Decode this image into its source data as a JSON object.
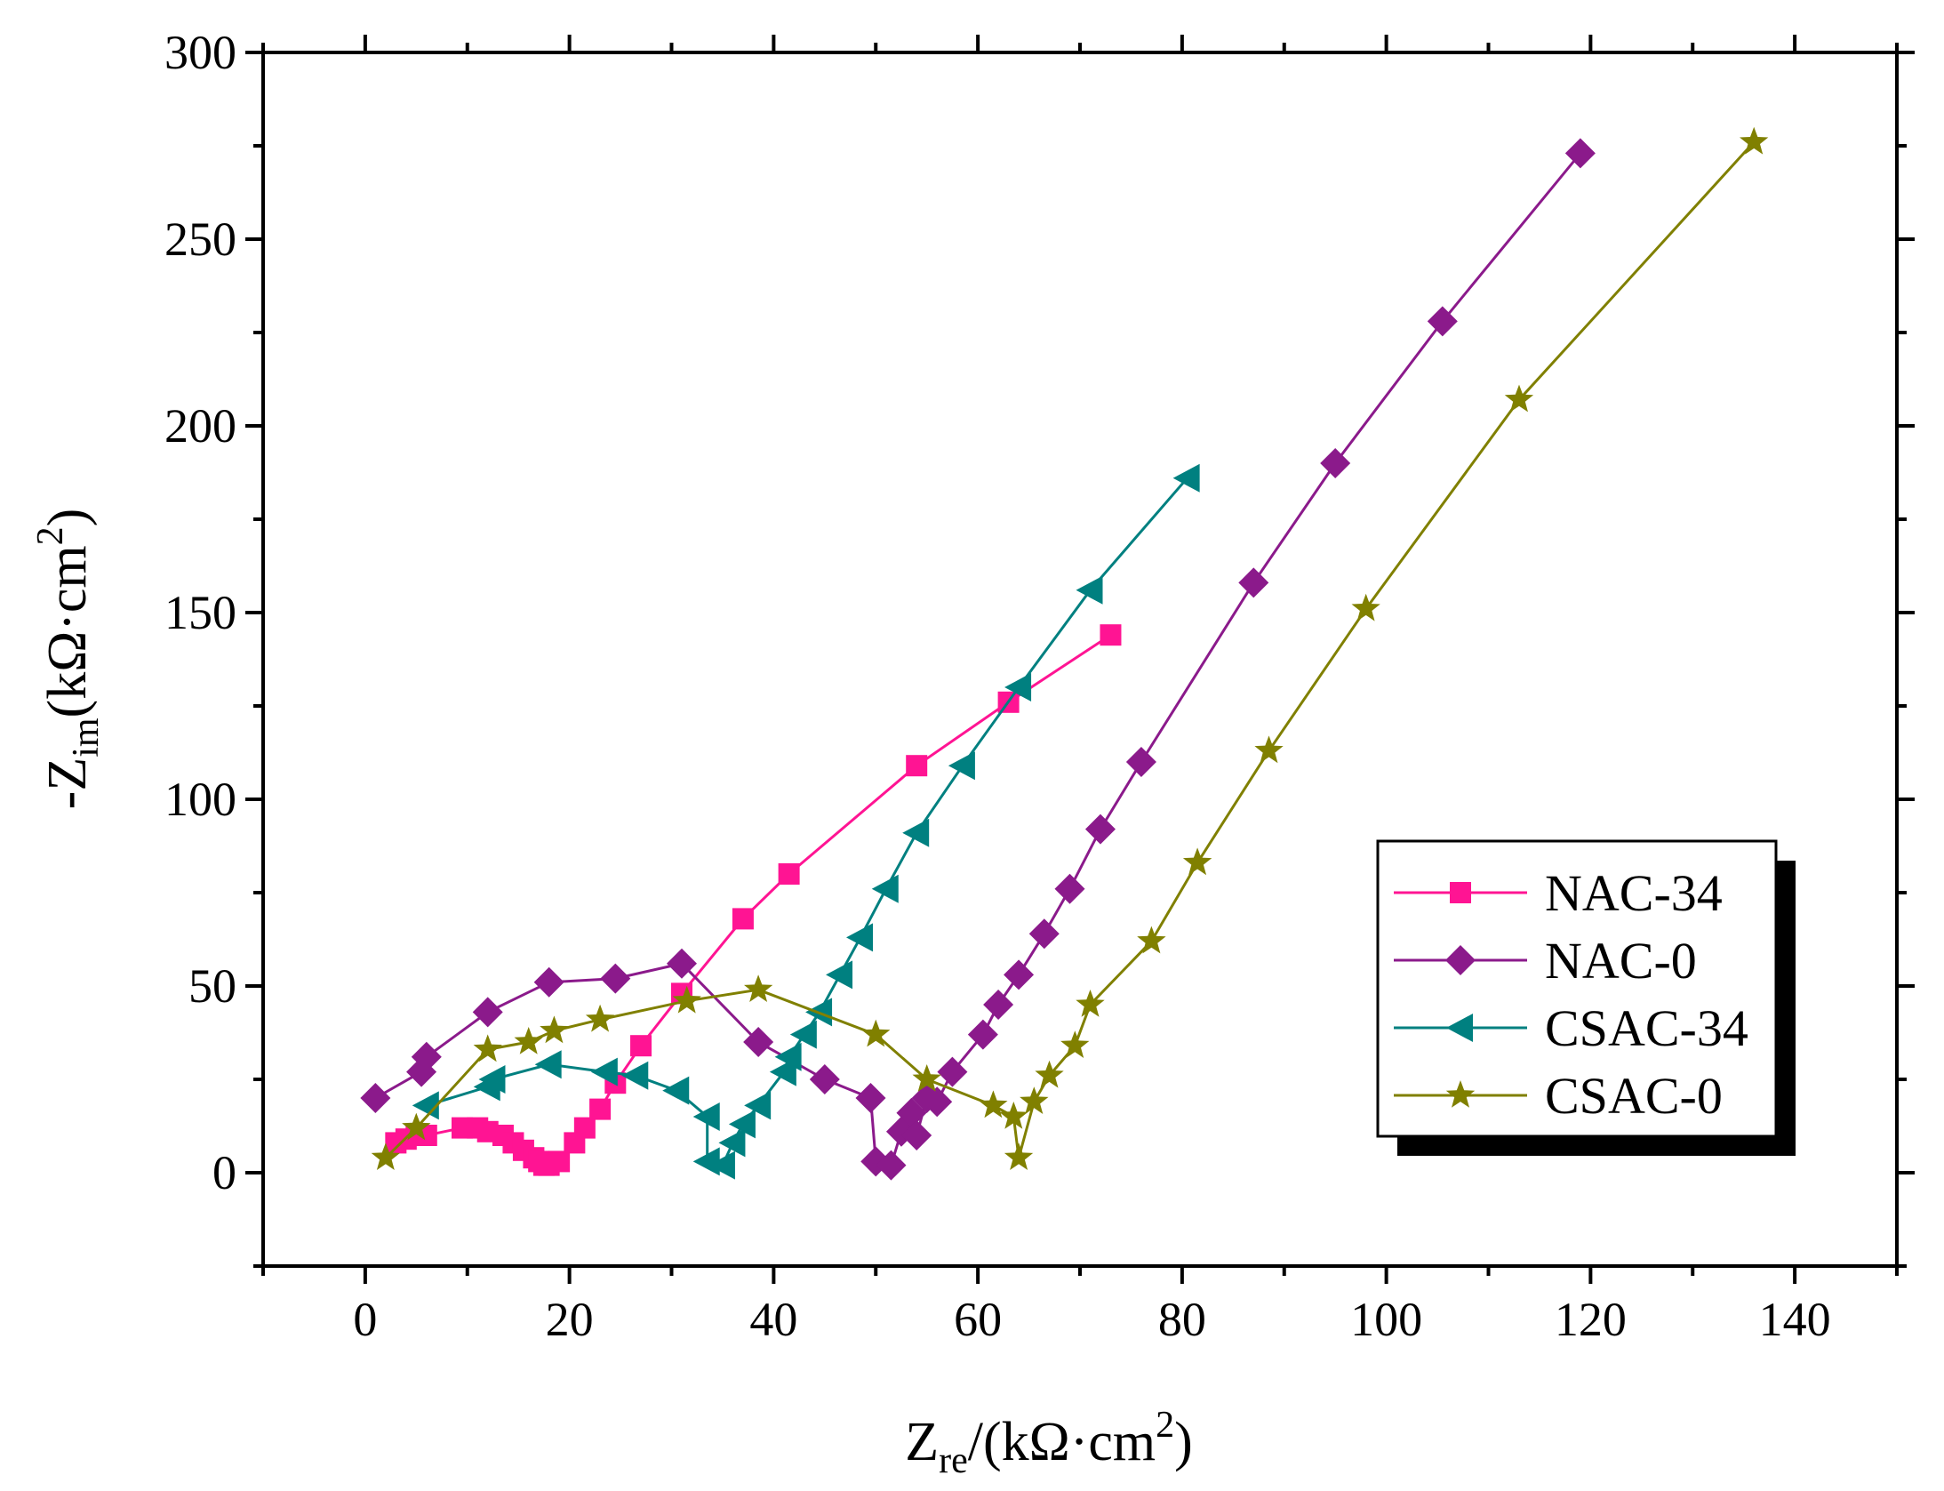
{
  "chart_data": {
    "type": "scatter",
    "xlabel": {
      "main": "Z",
      "sub": "re",
      "rest": "/(kΩ·cm",
      "sup": "2",
      "close": ")"
    },
    "ylabel": {
      "main": "-Z",
      "sub": "im",
      "rest": "(kΩ·cm",
      "sup": "2",
      "close": ")"
    },
    "xlim": [
      -10,
      150
    ],
    "ylim": [
      -25,
      300
    ],
    "x_ticks": [
      0,
      20,
      40,
      60,
      80,
      100,
      120,
      140
    ],
    "y_ticks": [
      0,
      50,
      100,
      150,
      200,
      250,
      300
    ],
    "legend_position": "lower-right",
    "grid": false,
    "series": [
      {
        "name": "NAC-34",
        "color": "#ff1493",
        "marker": "square",
        "points": [
          [
            3,
            8
          ],
          [
            4,
            9
          ],
          [
            5,
            10
          ],
          [
            6,
            10
          ],
          [
            9.5,
            12
          ],
          [
            11,
            12
          ],
          [
            12,
            11
          ],
          [
            13.5,
            10
          ],
          [
            14.5,
            8
          ],
          [
            15.5,
            6
          ],
          [
            16.5,
            4
          ],
          [
            17,
            3
          ],
          [
            17.5,
            2
          ],
          [
            18,
            2
          ],
          [
            19,
            3
          ],
          [
            20.5,
            8
          ],
          [
            21.5,
            12
          ],
          [
            23,
            17
          ],
          [
            24.5,
            24
          ],
          [
            27,
            34
          ],
          [
            31,
            48
          ],
          [
            37,
            68
          ],
          [
            41.5,
            80
          ],
          [
            54,
            109
          ],
          [
            63,
            126
          ],
          [
            73,
            144
          ]
        ]
      },
      {
        "name": "NAC-0",
        "color": "#8b1a8b",
        "marker": "diamond",
        "points": [
          [
            1,
            20
          ],
          [
            5.5,
            27
          ],
          [
            6,
            31
          ],
          [
            12,
            43
          ],
          [
            18,
            51
          ],
          [
            24.5,
            52
          ],
          [
            31,
            56
          ],
          [
            38.5,
            35
          ],
          [
            45,
            25
          ],
          [
            49.5,
            20
          ],
          [
            50,
            3
          ],
          [
            51.5,
            2
          ],
          [
            52.5,
            11
          ],
          [
            53.5,
            16
          ],
          [
            54,
            10
          ],
          [
            55,
            20
          ],
          [
            56,
            19
          ],
          [
            57.5,
            27
          ],
          [
            60.5,
            37
          ],
          [
            62,
            45
          ],
          [
            64,
            53
          ],
          [
            66.5,
            64
          ],
          [
            69,
            76
          ],
          [
            72,
            92
          ],
          [
            76,
            110
          ],
          [
            87,
            158
          ],
          [
            95,
            190
          ],
          [
            105.5,
            228
          ],
          [
            119,
            273
          ]
        ]
      },
      {
        "name": "CSAC-34",
        "color": "#008080",
        "marker": "triangle-left",
        "points": [
          [
            6,
            18
          ],
          [
            12,
            23
          ],
          [
            12.5,
            25
          ],
          [
            18,
            29
          ],
          [
            23.5,
            27
          ],
          [
            26.5,
            26
          ],
          [
            30.5,
            22
          ],
          [
            33.5,
            15
          ],
          [
            33.5,
            3
          ],
          [
            35,
            2
          ],
          [
            36,
            8
          ],
          [
            37,
            13
          ],
          [
            38.5,
            18
          ],
          [
            41,
            27
          ],
          [
            41.5,
            31
          ],
          [
            43,
            37
          ],
          [
            44.5,
            43
          ],
          [
            46.5,
            53
          ],
          [
            48.5,
            63
          ],
          [
            51,
            76
          ],
          [
            54,
            91
          ],
          [
            58.5,
            109
          ],
          [
            64,
            130
          ],
          [
            71,
            156
          ],
          [
            80.5,
            186
          ]
        ]
      },
      {
        "name": "CSAC-0",
        "color": "#808000",
        "marker": "star",
        "points": [
          [
            2,
            4
          ],
          [
            5,
            12
          ],
          [
            12,
            33
          ],
          [
            16,
            35
          ],
          [
            18.5,
            38
          ],
          [
            23,
            41
          ],
          [
            31.5,
            46
          ],
          [
            38.5,
            49
          ],
          [
            50,
            37
          ],
          [
            55,
            25
          ],
          [
            61.5,
            18
          ],
          [
            63.5,
            15
          ],
          [
            64,
            4
          ],
          [
            65.5,
            19
          ],
          [
            67,
            26
          ],
          [
            69.5,
            34
          ],
          [
            71,
            45
          ],
          [
            77,
            62
          ],
          [
            81.5,
            83
          ],
          [
            88.5,
            113
          ],
          [
            98,
            151
          ],
          [
            113,
            207
          ],
          [
            136,
            276
          ]
        ]
      }
    ]
  }
}
